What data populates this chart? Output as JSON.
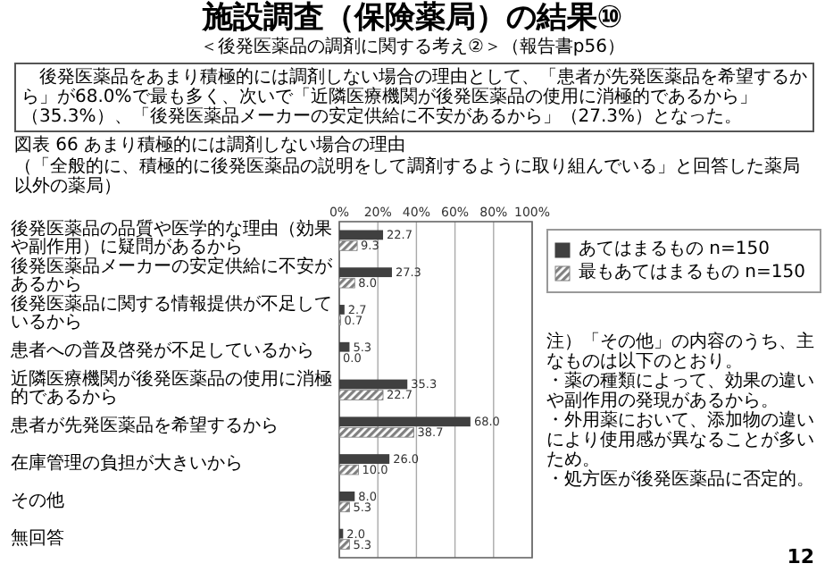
{
  "chart_data": {
    "type": "bar",
    "orientation": "horizontal",
    "title": "施設調査（保険薬局）の結果⑩",
    "subtitle": "＜後発医薬品の調剤に関する考え②＞（報告書p56）",
    "annotations": [
      "後発医薬品をあまり積極的には調剤しない場合の理由として、「患者が先発医薬品を希望するから」が68.0%で最も多く、次いで「近隣医療機関が後発医薬品の使用に消極的であるから」（35.3%）、「後発医薬品メーカーの安定供給に不安があるから」（27.3%）となった。",
      "図表 66 あまり積極的には調剤しない場合の理由",
      "（「全般的に、積極的に後発医薬品の説明をして調剤するように取り組んでいる」と回答した薬局以外の薬局）",
      "注）「その他」の内容のうち、主なものは以下のとおり。",
      "・薬の種類によって、効果の違いや副作用の発現があるから。",
      "・外用薬において、添加物の違いにより使用感が異なることが多いため。",
      "・処方医が後発医薬品に否定的。",
      "12"
    ],
    "categories": [
      "後発医薬品の品質や医学的な理由（効果や副作用）に疑問があるから",
      "後発医薬品メーカーの安定供給に不安があるから",
      "後発医薬品に関する情報提供が不足しているから",
      "患者への普及啓発が不足しているから",
      "近隣医療機関が後発医薬品の使用に消極的であるから",
      "患者が先発医薬品を希望するから",
      "在庫管理の負担が大きいから",
      "その他",
      "無回答"
    ],
    "series": [
      {
        "name": "あてはまるもの n=150",
        "color": "#404040",
        "values": [
          22.7,
          27.3,
          2.7,
          5.3,
          35.3,
          68.0,
          26.0,
          8.0,
          2.0
        ],
        "value_labels": [
          "22.7",
          "27.3",
          "2.7",
          "5.3",
          "35.3",
          "68.0",
          "26.0",
          "8.0",
          "2.0"
        ]
      },
      {
        "name": "最もあてはまるもの n=150",
        "color": "#808080",
        "values": [
          9.3,
          8.0,
          0.7,
          0.0,
          22.7,
          38.7,
          10.0,
          5.3,
          5.3
        ],
        "value_labels": [
          "9.3",
          "8.0",
          "0.7",
          "0.0",
          "22.7",
          "38.7",
          "10.0",
          "5.3",
          "5.3"
        ]
      }
    ],
    "xlim": [
      0,
      100
    ],
    "xticks": [
      {
        "value": 0,
        "label": "0%"
      },
      {
        "value": 20,
        "label": "20%"
      },
      {
        "value": 40,
        "label": "40%"
      },
      {
        "value": 60,
        "label": "60%"
      },
      {
        "value": 80,
        "label": "80%"
      },
      {
        "value": 100,
        "label": "100%"
      }
    ],
    "grid": "x",
    "legend": "right"
  }
}
